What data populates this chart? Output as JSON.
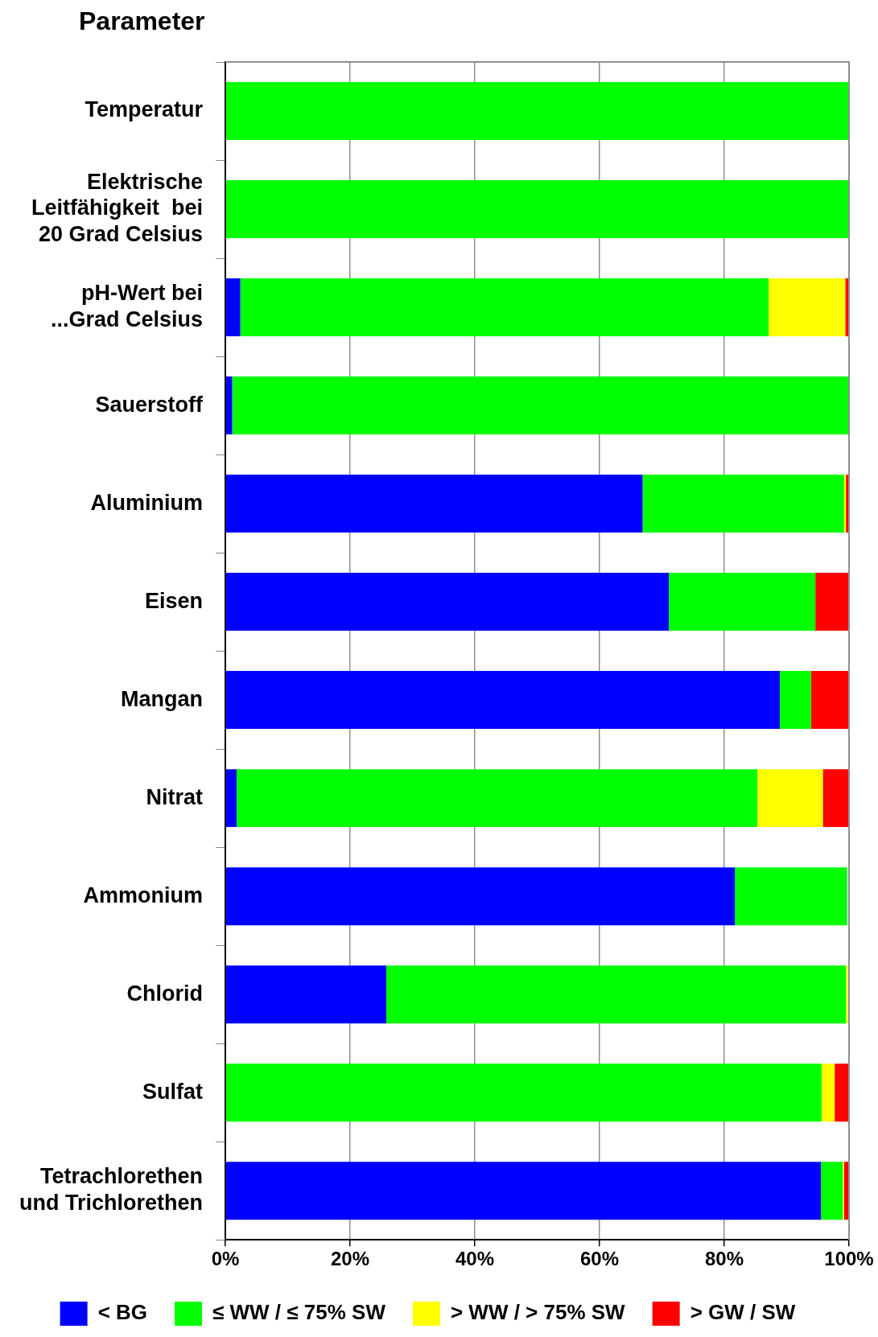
{
  "chart_data": {
    "type": "bar",
    "orientation": "horizontal",
    "stacked": true,
    "title": "Parameter",
    "categories": [
      "Temperatur",
      "Elektrische\nLeitfähigkeit  bei\n20 Grad Celsius",
      "pH-Wert bei\n...Grad Celsius",
      "Sauerstoff",
      "Aluminium",
      "Eisen",
      "Mangan",
      "Nitrat",
      "Ammonium",
      "Chlorid",
      "Sulfat",
      "Tetrachlorethen\nund Trichlorethen"
    ],
    "series": [
      {
        "name": "< BG",
        "color": "#0000ff",
        "values": [
          0,
          0,
          2.4,
          1.1,
          66.9,
          71.1,
          88.9,
          1.8,
          81.7,
          25.8,
          0,
          95.5
        ]
      },
      {
        "name": "≤ WW / ≤ 75% SW",
        "color": "#00ff00",
        "values": [
          100,
          100,
          84.7,
          98.9,
          32.3,
          23.5,
          5.0,
          83.5,
          18.0,
          73.7,
          95.6,
          3.5
        ]
      },
      {
        "name": "> WW / > 75% SW",
        "color": "#ffff00",
        "values": [
          0,
          0,
          12.3,
          0,
          0.3,
          0,
          0,
          10.5,
          null,
          0.3,
          2.1,
          0.2
        ]
      },
      {
        "name": "> GW / SW",
        "color": "#ff0000",
        "values": [
          0,
          0,
          0.6,
          0,
          0.5,
          5.4,
          6.1,
          4.2,
          null,
          null,
          2.3,
          0.8
        ]
      }
    ],
    "xlim": [
      0,
      100
    ],
    "xticks": [
      {
        "value": 0,
        "label": "0%"
      },
      {
        "value": 20,
        "label": "20%"
      },
      {
        "value": 40,
        "label": "40%"
      },
      {
        "value": 60,
        "label": "60%"
      },
      {
        "value": 80,
        "label": "80%"
      },
      {
        "value": 100,
        "label": "100%"
      }
    ],
    "grid": "x",
    "legend": "bottom"
  }
}
